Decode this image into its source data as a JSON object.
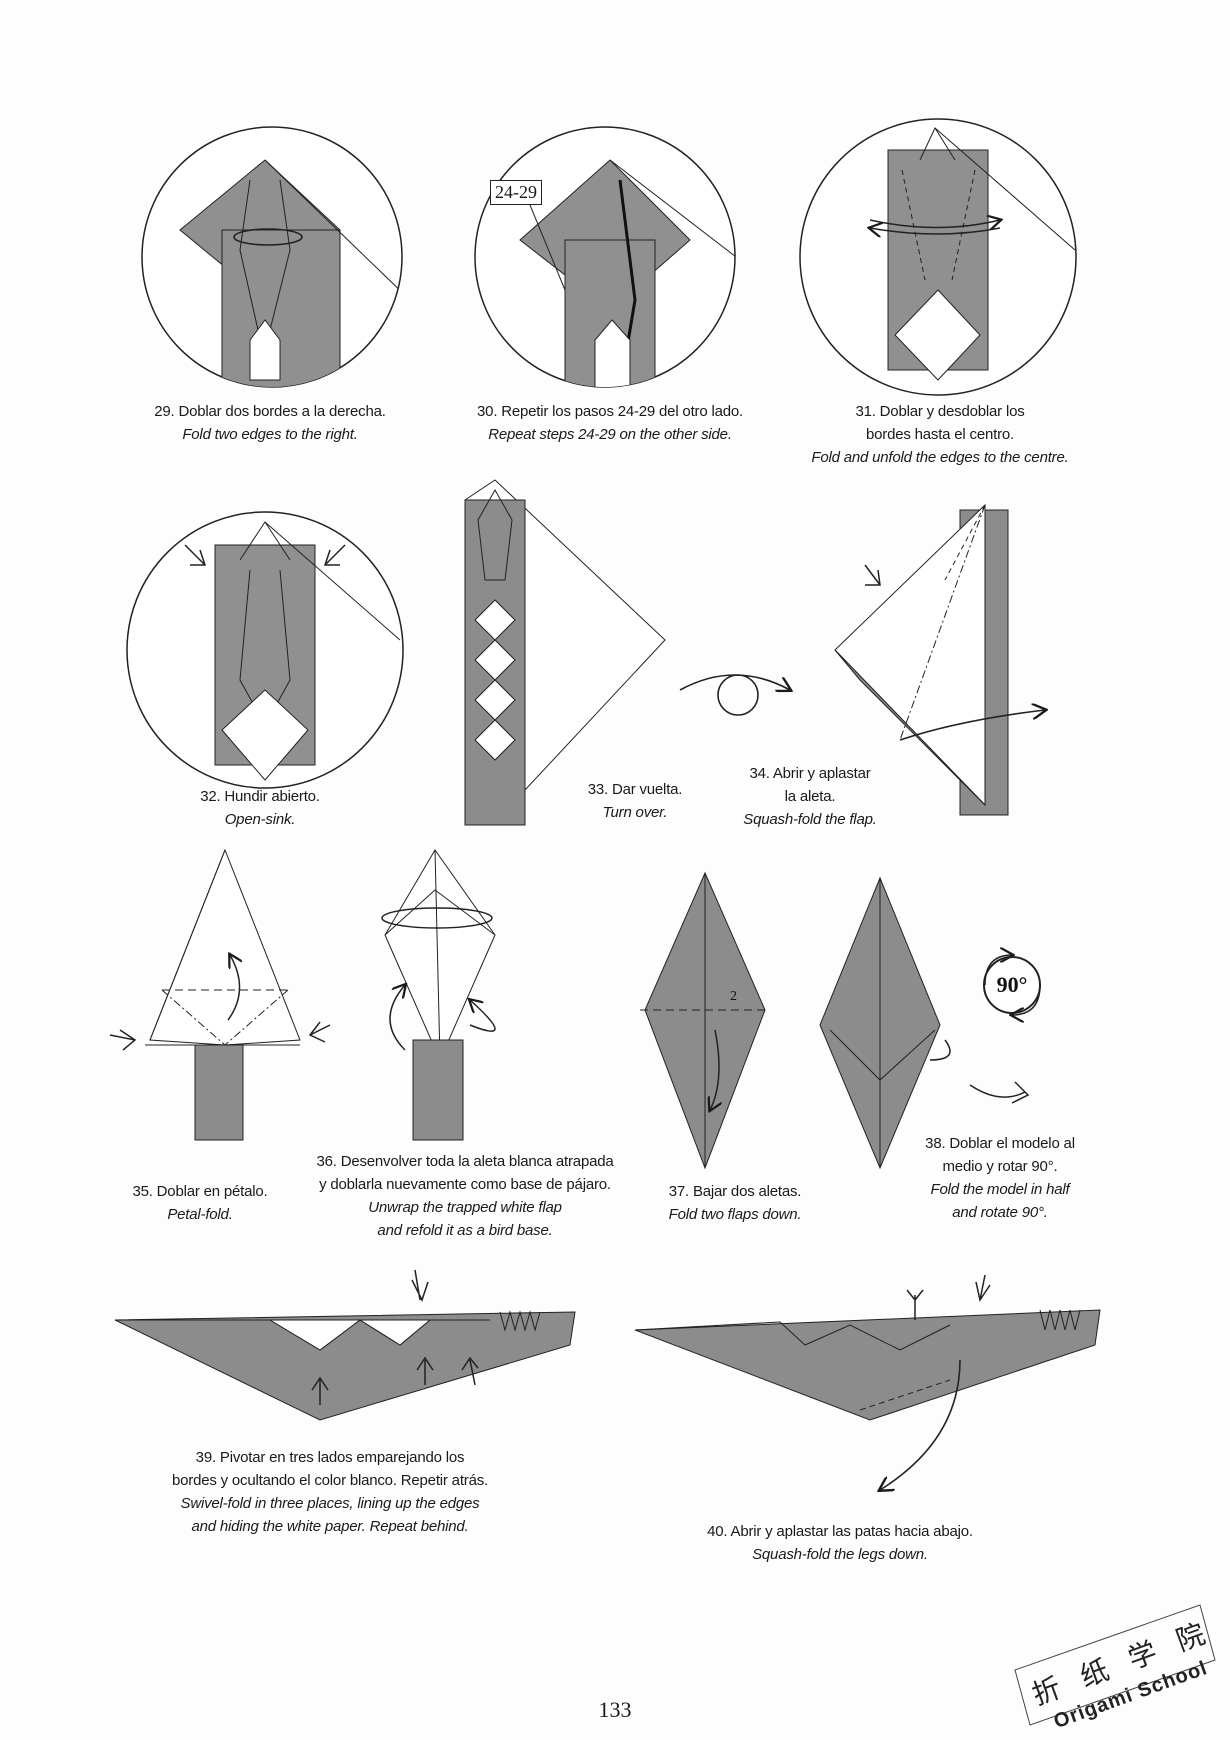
{
  "steps": {
    "s29": {
      "es": "29. Doblar dos bordes a la derecha.",
      "en": "Fold two edges to the right."
    },
    "s30": {
      "es": "30. Repetir los pasos 24-29 del otro lado.",
      "en": "Repeat steps 24-29 on the other side.",
      "ref": "24-29"
    },
    "s31": {
      "es1": "31. Doblar y desdoblar los",
      "es2": "bordes hasta el centro.",
      "en": "Fold and unfold the edges to the centre."
    },
    "s32": {
      "es": "32. Hundir abierto.",
      "en": "Open-sink."
    },
    "s33": {
      "es": "33. Dar vuelta.",
      "en": "Turn over."
    },
    "s34": {
      "es1": "34. Abrir y aplastar",
      "es2": "la aleta.",
      "en": "Squash-fold the flap."
    },
    "s35": {
      "es": "35. Doblar en pétalo.",
      "en": "Petal-fold."
    },
    "s36": {
      "es1": "36. Desenvolver toda la aleta blanca atrapada",
      "es2": "y doblarla nuevamente como base de pájaro.",
      "en1": "Unwrap the trapped white flap",
      "en2": "and refold it as a bird base."
    },
    "s37": {
      "es": "37. Bajar dos aletas.",
      "en": "Fold two flaps down.",
      "marker": "2"
    },
    "s38": {
      "es1": "38. Doblar el modelo al",
      "es2": "medio y rotar 90°.",
      "en1": "Fold the model in half",
      "en2": "and rotate 90°.",
      "badge": "90°"
    },
    "s39": {
      "es1": "39. Pivotar en tres lados emparejando los",
      "es2": "bordes y ocultando el color blanco. Repetir atrás.",
      "en1": "Swivel-fold in three places, lining up the edges",
      "en2": "and hiding the white paper. Repeat behind."
    },
    "s40": {
      "es": "40. Abrir y aplastar las patas hacia abajo.",
      "en": "Squash-fold the legs down."
    }
  },
  "page_number": "133",
  "watermark": {
    "zh": [
      "折",
      "纸",
      "学",
      "院"
    ],
    "brand": "Origami School"
  },
  "colors": {
    "paper_gray": "#8c8c8c",
    "line": "#1a1a1a",
    "background": "#fdfdfd"
  }
}
